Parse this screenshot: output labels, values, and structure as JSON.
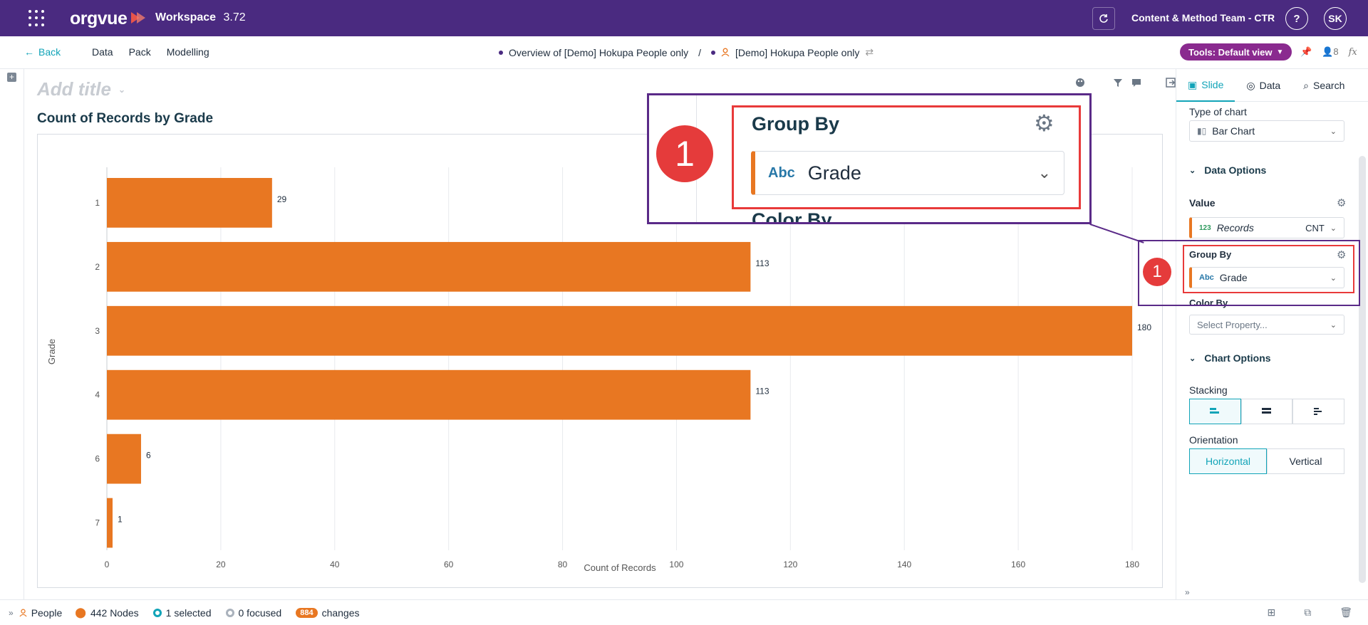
{
  "app": {
    "logo": "orgvue",
    "workspace_label": "Workspace",
    "version": "3.72",
    "team": "Content & Method Team - CTR",
    "help": "?",
    "user_initials": "SK"
  },
  "nav": {
    "back": "Back",
    "menu": [
      "Data",
      "Pack",
      "Modelling"
    ],
    "breadcrumb_overview": "Overview of [Demo] Hokupa People only",
    "breadcrumb_sep": "/",
    "breadcrumb_dataset": "[Demo] Hokupa People only",
    "tools": "Tools: Default view",
    "people_count": "8",
    "fx": "fx"
  },
  "slide": {
    "add_title": "Add title"
  },
  "panel": {
    "tabs": [
      "Slide",
      "Data",
      "Search"
    ],
    "type_of_chart_label": "Type of chart",
    "type_of_chart_value": "Bar Chart",
    "data_options": "Data Options",
    "value_label": "Value",
    "value_type": "123",
    "value_field": "Records",
    "value_agg": "CNT",
    "group_by_label": "Group By",
    "group_by_type": "Abc",
    "group_by_value": "Grade",
    "color_by_label": "Color By",
    "color_by_placeholder": "Select Property...",
    "chart_options": "Chart Options",
    "stacking_label": "Stacking",
    "orientation_label": "Orientation",
    "orientation_options": [
      "Horizontal",
      "Vertical"
    ]
  },
  "zoom": {
    "group_by_label": "Group By",
    "type": "Abc",
    "value": "Grade",
    "next_label": "Color By",
    "badge": "1"
  },
  "status": {
    "entity": "People",
    "nodes": "442 Nodes",
    "selected": "1 selected",
    "focused": "0 focused",
    "changes_count": "884",
    "changes_label": "changes"
  },
  "colors": {
    "bar": "#e87722",
    "brand": "#4a2a80",
    "accent": "#12a4b8",
    "highlight_red": "#e83a3a"
  },
  "chart_data": {
    "type": "bar",
    "orientation": "horizontal",
    "title": "Count of Records by Grade",
    "xlabel": "Count of Records",
    "ylabel": "Grade",
    "categories": [
      "1",
      "2",
      "3",
      "4",
      "6",
      "7"
    ],
    "values": [
      29,
      113,
      180,
      113,
      6,
      1
    ],
    "xlim": [
      0,
      180
    ],
    "xticks": [
      0,
      20,
      40,
      60,
      80,
      100,
      120,
      140,
      160,
      180
    ],
    "grid": true
  }
}
